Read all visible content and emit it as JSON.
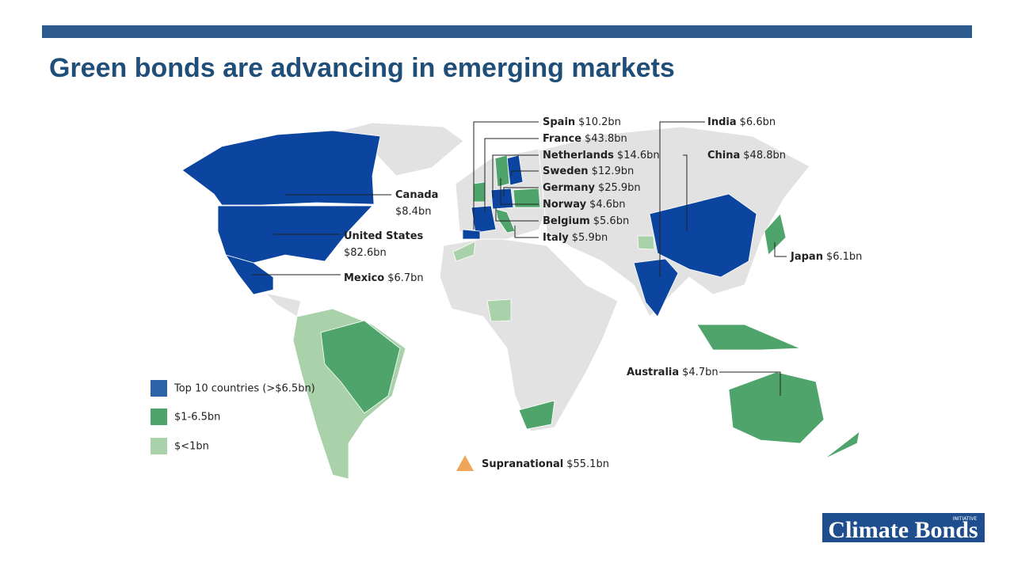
{
  "header": {
    "title": "Green bonds are advancing in emerging markets"
  },
  "labels": [
    {
      "name": "Spain",
      "amount": "$10.2bn"
    },
    {
      "name": "France",
      "amount": "$43.8bn"
    },
    {
      "name": "Netherlands",
      "amount": "$14.6bn"
    },
    {
      "name": "Sweden",
      "amount": "$12.9bn"
    },
    {
      "name": "Germany",
      "amount": "$25.9bn"
    },
    {
      "name": "Norway",
      "amount": "$4.6bn"
    },
    {
      "name": "Belgium",
      "amount": "$5.6bn"
    },
    {
      "name": "Italy",
      "amount": "$5.9bn"
    },
    {
      "name": "India",
      "amount": "$6.6bn"
    },
    {
      "name": "China",
      "amount": "$48.8bn"
    },
    {
      "name": "Japan",
      "amount": "$6.1bn"
    },
    {
      "name": "Canada",
      "amount": "$8.4bn"
    },
    {
      "name": "United States",
      "amount": "$82.6bn"
    },
    {
      "name": "Mexico",
      "amount": "$6.7bn"
    },
    {
      "name": "Australia",
      "amount": "$4.7bn"
    },
    {
      "name": "Supranational",
      "amount": "$55.1bn"
    }
  ],
  "legend": [
    "Top 10 countries (>$6.5bn)",
    "$1-6.5bn",
    "$<1bn"
  ],
  "logo": {
    "name": "Climate Bonds",
    "tag": "INITIATIVE"
  }
}
